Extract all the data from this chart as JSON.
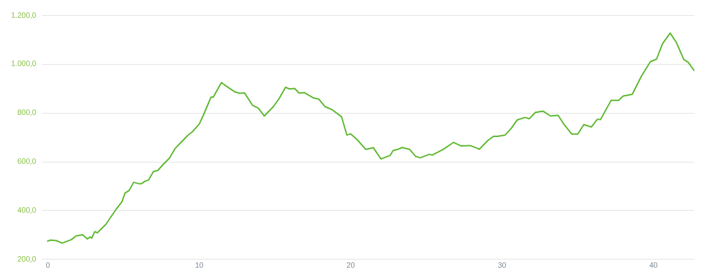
{
  "chart_data": {
    "type": "line",
    "x": [
      -0.05,
      0.18,
      0.56,
      0.95,
      1.55,
      1.86,
      2.3,
      2.6,
      2.8,
      2.9,
      3.1,
      3.26,
      3.84,
      4.15,
      4.53,
      4.9,
      5.1,
      5.36,
      5.67,
      5.98,
      6.2,
      6.43,
      6.66,
      6.97,
      7.27,
      7.58,
      8.03,
      8.41,
      8.8,
      9.25,
      9.56,
      10.01,
      10.32,
      10.78,
      10.93,
      11.46,
      11.92,
      12.38,
      12.68,
      12.99,
      13.52,
      13.9,
      14.3,
      14.9,
      15.3,
      15.7,
      15.95,
      16.3,
      16.6,
      16.95,
      17.55,
      17.9,
      18.3,
      18.8,
      19.4,
      19.75,
      20.0,
      20.45,
      21.0,
      21.5,
      22.0,
      22.6,
      22.8,
      23.1,
      23.4,
      23.9,
      24.3,
      24.6,
      25.2,
      25.4,
      26.1,
      26.8,
      27.3,
      27.9,
      28.3,
      28.5,
      29.1,
      29.45,
      29.7,
      30.2,
      30.6,
      31.0,
      31.5,
      31.8,
      32.2,
      32.7,
      33.2,
      33.7,
      34.1,
      34.6,
      35.0,
      35.4,
      35.9,
      36.3,
      36.5,
      37.2,
      37.7,
      38.0,
      38.6,
      39.2,
      39.8,
      40.2,
      40.6,
      41.1,
      41.5,
      42.0,
      42.3,
      42.7
    ],
    "series": [
      {
        "color": "#5cb82e",
        "values": [
          274,
          279,
          277,
          267,
          281,
          296,
          301,
          284,
          292,
          287,
          314,
          309,
          344,
          373,
          407,
          437,
          472,
          482,
          516,
          511,
          511,
          521,
          526,
          560,
          565,
          587,
          615,
          655,
          680,
          709,
          724,
          756,
          798,
          866,
          866,
          925,
          905,
          886,
          881,
          883,
          832,
          820,
          788,
          827,
          862,
          906,
          899,
          901,
          882,
          884,
          862,
          857,
          827,
          813,
          785,
          710,
          715,
          690,
          651,
          658,
          612,
          626,
          646,
          651,
          659,
          651,
          622,
          617,
          631,
          628,
          651,
          680,
          665,
          667,
          657,
          652,
          690,
          705,
          705,
          710,
          737,
          772,
          782,
          777,
          803,
          808,
          788,
          791,
          753,
          714,
          714,
          753,
          743,
          775,
          773,
          852,
          852,
          870,
          877,
          951,
          1011,
          1021,
          1085,
          1128,
          1091,
          1020,
          1008,
          973
        ]
      }
    ],
    "xlim": [
      -0.4,
      42.7
    ],
    "xticks": [
      0,
      10,
      20,
      30,
      40
    ],
    "ylim": [
      200,
      1200
    ],
    "yticks": [
      {
        "value": 200,
        "label": "200,0"
      },
      {
        "value": 400,
        "label": "400,0"
      },
      {
        "value": 600,
        "label": "600,0"
      },
      {
        "value": 800,
        "label": "800,0"
      },
      {
        "value": 1000,
        "label": "1.000,0"
      },
      {
        "value": 1200,
        "label": "1.200,0"
      }
    ],
    "grid": "y",
    "marker": "none",
    "line_style": "solid",
    "legend": false
  }
}
